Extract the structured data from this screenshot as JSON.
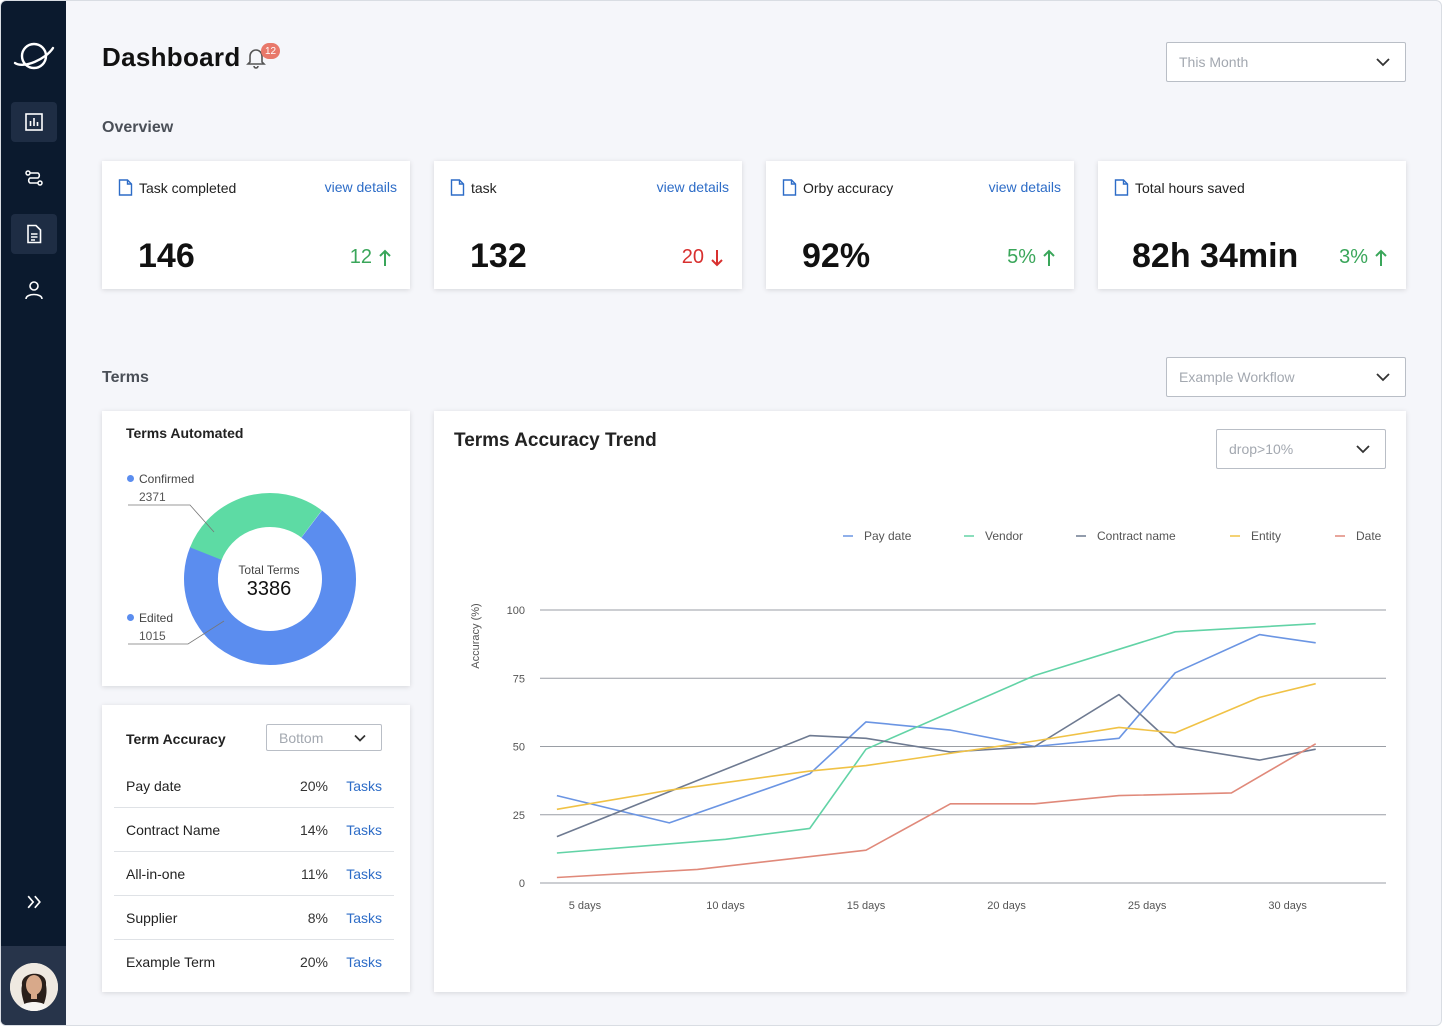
{
  "header": {
    "title": "Dashboard",
    "notification_count": "12",
    "period_select": "This Month"
  },
  "overview": {
    "label": "Overview",
    "cards": [
      {
        "title": "Task completed",
        "link": "view details",
        "value": "146",
        "delta": "12",
        "direction": "up"
      },
      {
        "title": "task",
        "link": "view details",
        "value": "132",
        "delta": "20",
        "direction": "down"
      },
      {
        "title": "Orby accuracy",
        "link": "view details",
        "value": "92%",
        "delta": "5%",
        "direction": "up"
      },
      {
        "title": "Total hours saved",
        "link": "",
        "value": "82h 34min",
        "delta": "3%",
        "direction": "up"
      }
    ]
  },
  "terms": {
    "label": "Terms",
    "workflow_select": "Example Workflow",
    "automated": {
      "title": "Terms Automated",
      "confirmed_label": "Confirmed",
      "confirmed_value": "2371",
      "edited_label": "Edited",
      "edited_value": "1015",
      "total_label": "Total Terms",
      "total_value": "3386",
      "colors": {
        "confirmed": "#5b8def",
        "edited": "#5ddba4"
      }
    },
    "accuracy": {
      "title": "Term Accuracy",
      "select": "Bottom",
      "rows": [
        {
          "name": "Pay date",
          "pct": "20%",
          "link": "Tasks"
        },
        {
          "name": "Contract Name",
          "pct": "14%",
          "link": "Tasks"
        },
        {
          "name": "All-in-one",
          "pct": "11%",
          "link": "Tasks"
        },
        {
          "name": "Supplier",
          "pct": "8%",
          "link": "Tasks"
        },
        {
          "name": "Example Term",
          "pct": "20%",
          "link": "Tasks"
        }
      ]
    }
  },
  "trend": {
    "title": "Terms Accuracy Trend",
    "select": "drop>10%"
  },
  "chart_data": {
    "type": "line",
    "title": "Terms Accuracy Trend",
    "ylabel": "Accuracy (%)",
    "xlabel": "",
    "ylim": [
      0,
      100
    ],
    "yticks": [
      0,
      25,
      50,
      75,
      100
    ],
    "x": [
      4,
      6,
      8,
      10,
      12,
      14,
      16,
      18,
      20,
      22,
      24,
      26,
      28,
      30
    ],
    "xtick_values": [
      5,
      10,
      15,
      20,
      25,
      30
    ],
    "xtick_labels": [
      "5 days",
      "10 days",
      "15 days",
      "20 days",
      "25 days",
      "30 days"
    ],
    "xlim": [
      3.4,
      33.5
    ],
    "series": [
      {
        "name": "Pay date",
        "color": "#6b95e3",
        "x": [
          4,
          8,
          13,
          15,
          18,
          21,
          24,
          26,
          29,
          31
        ],
        "values": [
          32,
          22,
          40,
          59,
          56,
          50,
          53,
          77,
          91,
          88
        ]
      },
      {
        "name": "Vendor",
        "color": "#62d3a6",
        "x": [
          4,
          10,
          13,
          15,
          21,
          26,
          31
        ],
        "values": [
          11,
          16,
          20,
          49,
          76,
          92,
          95
        ]
      },
      {
        "name": "Contract name",
        "color": "#6e7a91",
        "x": [
          4,
          13,
          15,
          18,
          21,
          24,
          26,
          29,
          31
        ],
        "values": [
          17,
          54,
          53,
          48,
          50,
          69,
          50,
          45,
          49
        ]
      },
      {
        "name": "Entity",
        "color": "#f0c246",
        "x": [
          4,
          8,
          13,
          15,
          21,
          24,
          26,
          29,
          31
        ],
        "values": [
          27,
          34,
          41,
          43,
          52,
          57,
          55,
          68,
          73
        ]
      },
      {
        "name": "Date",
        "color": "#e0897a",
        "x": [
          4,
          9,
          15,
          18,
          21,
          24,
          28,
          31
        ],
        "values": [
          2,
          5,
          12,
          29,
          29,
          32,
          33,
          51
        ]
      }
    ]
  }
}
